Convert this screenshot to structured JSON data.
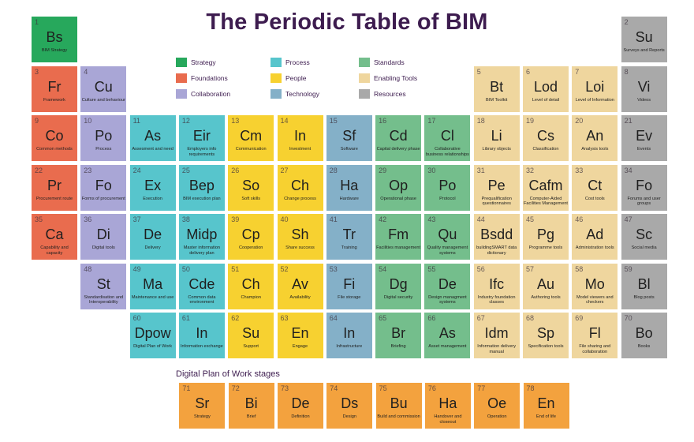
{
  "title": "The Periodic Table of BIM",
  "stages_heading": "Digital Plan of Work stages",
  "categories": {
    "strategy": {
      "label": "Strategy",
      "color": "#27a85c"
    },
    "foundations": {
      "label": "Foundations",
      "color": "#e96c4e"
    },
    "collaboration": {
      "label": "Collaboration",
      "color": "#a9a6d6"
    },
    "process": {
      "label": "Process",
      "color": "#57c5cc"
    },
    "people": {
      "label": "People",
      "color": "#f7d130"
    },
    "technology": {
      "label": "Technology",
      "color": "#84b0c8"
    },
    "standards": {
      "label": "Standards",
      "color": "#74be8c"
    },
    "tools": {
      "label": "Enabling Tools",
      "color": "#efd69e"
    },
    "resources": {
      "label": "Resources",
      "color": "#a9a9a9"
    },
    "stages": {
      "label": "",
      "color": "#f3a23e"
    }
  },
  "legend": [
    {
      "cat": "strategy",
      "col": 0,
      "row": 0
    },
    {
      "cat": "foundations",
      "col": 0,
      "row": 1
    },
    {
      "cat": "collaboration",
      "col": 0,
      "row": 2
    },
    {
      "cat": "process",
      "col": 1,
      "row": 0
    },
    {
      "cat": "people",
      "col": 1,
      "row": 1
    },
    {
      "cat": "technology",
      "col": 1,
      "row": 2
    },
    {
      "cat": "standards",
      "col": 2,
      "row": 0
    },
    {
      "cat": "tools",
      "col": 2,
      "row": 1
    },
    {
      "cat": "resources",
      "col": 2,
      "row": 2
    }
  ],
  "elements": [
    {
      "n": "1",
      "sym": "Bs",
      "name": "BIM Strategy",
      "cat": "strategy",
      "col": 0,
      "row": 0
    },
    {
      "n": "2",
      "sym": "Su",
      "name": "Surveys and Reports",
      "cat": "resources",
      "col": 12,
      "row": 0
    },
    {
      "n": "3",
      "sym": "Fr",
      "name": "Framework",
      "cat": "foundations",
      "col": 0,
      "row": 1
    },
    {
      "n": "4",
      "sym": "Cu",
      "name": "Culture and behaviour",
      "cat": "collaboration",
      "col": 1,
      "row": 1
    },
    {
      "n": "5",
      "sym": "Bt",
      "name": "BIM Toolkit",
      "cat": "tools",
      "col": 9,
      "row": 1
    },
    {
      "n": "6",
      "sym": "Lod",
      "name": "Level of detail",
      "cat": "tools",
      "col": 10,
      "row": 1
    },
    {
      "n": "7",
      "sym": "Loi",
      "name": "Level of Information",
      "cat": "tools",
      "col": 11,
      "row": 1
    },
    {
      "n": "8",
      "sym": "Vi",
      "name": "Videos",
      "cat": "resources",
      "col": 12,
      "row": 1
    },
    {
      "n": "9",
      "sym": "Co",
      "name": "Common methods",
      "cat": "foundations",
      "col": 0,
      "row": 2
    },
    {
      "n": "10",
      "sym": "Po",
      "name": "Process",
      "cat": "collaboration",
      "col": 1,
      "row": 2
    },
    {
      "n": "11",
      "sym": "As",
      "name": "Assesment and need",
      "cat": "process",
      "col": 2,
      "row": 2
    },
    {
      "n": "12",
      "sym": "Eir",
      "name": "Employers info requirements",
      "cat": "process",
      "col": 3,
      "row": 2
    },
    {
      "n": "13",
      "sym": "Cm",
      "name": "Communication",
      "cat": "people",
      "col": 4,
      "row": 2
    },
    {
      "n": "14",
      "sym": "In",
      "name": "Investment",
      "cat": "people",
      "col": 5,
      "row": 2
    },
    {
      "n": "15",
      "sym": "Sf",
      "name": "Software",
      "cat": "technology",
      "col": 6,
      "row": 2
    },
    {
      "n": "16",
      "sym": "Cd",
      "name": "Capital delivery phase",
      "cat": "standards",
      "col": 7,
      "row": 2
    },
    {
      "n": "17",
      "sym": "Cl",
      "name": "Collaborative business relationships",
      "cat": "standards",
      "col": 8,
      "row": 2
    },
    {
      "n": "18",
      "sym": "Li",
      "name": "Library objects",
      "cat": "tools",
      "col": 9,
      "row": 2
    },
    {
      "n": "19",
      "sym": "Cs",
      "name": "Classification",
      "cat": "tools",
      "col": 10,
      "row": 2
    },
    {
      "n": "20",
      "sym": "An",
      "name": "Analysis tools",
      "cat": "tools",
      "col": 11,
      "row": 2
    },
    {
      "n": "21",
      "sym": "Ev",
      "name": "Events",
      "cat": "resources",
      "col": 12,
      "row": 2
    },
    {
      "n": "22",
      "sym": "Pr",
      "name": "Procurement route",
      "cat": "foundations",
      "col": 0,
      "row": 3
    },
    {
      "n": "23",
      "sym": "Fo",
      "name": "Forms of procurement",
      "cat": "collaboration",
      "col": 1,
      "row": 3
    },
    {
      "n": "24",
      "sym": "Ex",
      "name": "Execution",
      "cat": "process",
      "col": 2,
      "row": 3
    },
    {
      "n": "25",
      "sym": "Bep",
      "name": "BIM execution plan",
      "cat": "process",
      "col": 3,
      "row": 3
    },
    {
      "n": "26",
      "sym": "So",
      "name": "Soft skills",
      "cat": "people",
      "col": 4,
      "row": 3
    },
    {
      "n": "27",
      "sym": "Ch",
      "name": "Change process",
      "cat": "people",
      "col": 5,
      "row": 3
    },
    {
      "n": "28",
      "sym": "Ha",
      "name": "Hardware",
      "cat": "technology",
      "col": 6,
      "row": 3
    },
    {
      "n": "29",
      "sym": "Op",
      "name": "Operational phase",
      "cat": "standards",
      "col": 7,
      "row": 3
    },
    {
      "n": "30",
      "sym": "Po",
      "name": "Protocol",
      "cat": "standards",
      "col": 8,
      "row": 3
    },
    {
      "n": "31",
      "sym": "Pe",
      "name": "Prequalification questionnaires",
      "cat": "tools",
      "col": 9,
      "row": 3
    },
    {
      "n": "32",
      "sym": "Cafm",
      "name": "Computer-Aided Facilities Management",
      "cat": "tools",
      "col": 10,
      "row": 3
    },
    {
      "n": "33",
      "sym": "Ct",
      "name": "Cost tools",
      "cat": "tools",
      "col": 11,
      "row": 3
    },
    {
      "n": "34",
      "sym": "Fo",
      "name": "Forums and user groups",
      "cat": "resources",
      "col": 12,
      "row": 3
    },
    {
      "n": "35",
      "sym": "Ca",
      "name": "Capability and capacity",
      "cat": "foundations",
      "col": 0,
      "row": 4
    },
    {
      "n": "36",
      "sym": "Di",
      "name": "Digital tools",
      "cat": "collaboration",
      "col": 1,
      "row": 4
    },
    {
      "n": "37",
      "sym": "De",
      "name": "Delivery",
      "cat": "process",
      "col": 2,
      "row": 4
    },
    {
      "n": "38",
      "sym": "Midp",
      "name": "Master information delivery plan",
      "cat": "process",
      "col": 3,
      "row": 4
    },
    {
      "n": "39",
      "sym": "Cp",
      "name": "Cooperation",
      "cat": "people",
      "col": 4,
      "row": 4
    },
    {
      "n": "40",
      "sym": "Sh",
      "name": "Share success",
      "cat": "people",
      "col": 5,
      "row": 4
    },
    {
      "n": "41",
      "sym": "Tr",
      "name": "Training",
      "cat": "technology",
      "col": 6,
      "row": 4
    },
    {
      "n": "42",
      "sym": "Fm",
      "name": "Facilities management",
      "cat": "standards",
      "col": 7,
      "row": 4
    },
    {
      "n": "43",
      "sym": "Qu",
      "name": "Quality management systems",
      "cat": "standards",
      "col": 8,
      "row": 4
    },
    {
      "n": "44",
      "sym": "Bsdd",
      "name": "buildingSMART data dictionary",
      "cat": "tools",
      "col": 9,
      "row": 4
    },
    {
      "n": "45",
      "sym": "Pg",
      "name": "Programme tools",
      "cat": "tools",
      "col": 10,
      "row": 4
    },
    {
      "n": "46",
      "sym": "Ad",
      "name": "Administration tools",
      "cat": "tools",
      "col": 11,
      "row": 4
    },
    {
      "n": "47",
      "sym": "Sc",
      "name": "Social media",
      "cat": "resources",
      "col": 12,
      "row": 4
    },
    {
      "n": "48",
      "sym": "St",
      "name": "Standardisation and Interoperability",
      "cat": "collaboration",
      "col": 1,
      "row": 5
    },
    {
      "n": "49",
      "sym": "Ma",
      "name": "Maintenance and use",
      "cat": "process",
      "col": 2,
      "row": 5
    },
    {
      "n": "50",
      "sym": "Cde",
      "name": "Common data environment",
      "cat": "process",
      "col": 3,
      "row": 5
    },
    {
      "n": "51",
      "sym": "Ch",
      "name": "Champion",
      "cat": "people",
      "col": 4,
      "row": 5
    },
    {
      "n": "52",
      "sym": "Av",
      "name": "Availability",
      "cat": "people",
      "col": 5,
      "row": 5
    },
    {
      "n": "53",
      "sym": "Fi",
      "name": "File storage",
      "cat": "technology",
      "col": 6,
      "row": 5
    },
    {
      "n": "54",
      "sym": "Dg",
      "name": "Digital security",
      "cat": "standards",
      "col": 7,
      "row": 5
    },
    {
      "n": "55",
      "sym": "De",
      "name": "Design managment systems",
      "cat": "standards",
      "col": 8,
      "row": 5
    },
    {
      "n": "56",
      "sym": "Ifc",
      "name": "Industry foundation classes",
      "cat": "tools",
      "col": 9,
      "row": 5
    },
    {
      "n": "57",
      "sym": "Au",
      "name": "Authoring tools",
      "cat": "tools",
      "col": 10,
      "row": 5
    },
    {
      "n": "58",
      "sym": "Mo",
      "name": "Model viewers and checkers",
      "cat": "tools",
      "col": 11,
      "row": 5
    },
    {
      "n": "59",
      "sym": "Bl",
      "name": "Blog posts",
      "cat": "resources",
      "col": 12,
      "row": 5
    },
    {
      "n": "60",
      "sym": "Dpow",
      "name": "Digital Plan of Work",
      "cat": "process",
      "col": 2,
      "row": 6
    },
    {
      "n": "61",
      "sym": "In",
      "name": "Information exchange",
      "cat": "process",
      "col": 3,
      "row": 6
    },
    {
      "n": "62",
      "sym": "Su",
      "name": "Support",
      "cat": "people",
      "col": 4,
      "row": 6
    },
    {
      "n": "63",
      "sym": "En",
      "name": "Engage",
      "cat": "people",
      "col": 5,
      "row": 6
    },
    {
      "n": "64",
      "sym": "In",
      "name": "Infrastructure",
      "cat": "technology",
      "col": 6,
      "row": 6
    },
    {
      "n": "65",
      "sym": "Br",
      "name": "Briefing",
      "cat": "standards",
      "col": 7,
      "row": 6
    },
    {
      "n": "66",
      "sym": "As",
      "name": "Asset management",
      "cat": "standards",
      "col": 8,
      "row": 6
    },
    {
      "n": "67",
      "sym": "Idm",
      "name": "Information delivery manual",
      "cat": "tools",
      "col": 9,
      "row": 6
    },
    {
      "n": "68",
      "sym": "Sp",
      "name": "Specification tools",
      "cat": "tools",
      "col": 10,
      "row": 6
    },
    {
      "n": "69",
      "sym": "Fl",
      "name": "File sharing and collaboration",
      "cat": "tools",
      "col": 11,
      "row": 6
    },
    {
      "n": "70",
      "sym": "Bo",
      "name": "Books",
      "cat": "resources",
      "col": 12,
      "row": 6
    }
  ],
  "stages": [
    {
      "n": "71",
      "sym": "Sr",
      "name": "Strategy",
      "cat": "stages",
      "col": 3
    },
    {
      "n": "72",
      "sym": "Bi",
      "name": "Brief",
      "cat": "stages",
      "col": 4
    },
    {
      "n": "73",
      "sym": "De",
      "name": "Definition",
      "cat": "stages",
      "col": 5
    },
    {
      "n": "74",
      "sym": "Ds",
      "name": "Design",
      "cat": "stages",
      "col": 6
    },
    {
      "n": "75",
      "sym": "Bu",
      "name": "Build and commission",
      "cat": "stages",
      "col": 7
    },
    {
      "n": "76",
      "sym": "Ha",
      "name": "Handover and closeout",
      "cat": "stages",
      "col": 8
    },
    {
      "n": "77",
      "sym": "Oe",
      "name": "Operation",
      "cat": "stages",
      "col": 9
    },
    {
      "n": "78",
      "sym": "En",
      "name": "End of life",
      "cat": "stages",
      "col": 10
    }
  ]
}
